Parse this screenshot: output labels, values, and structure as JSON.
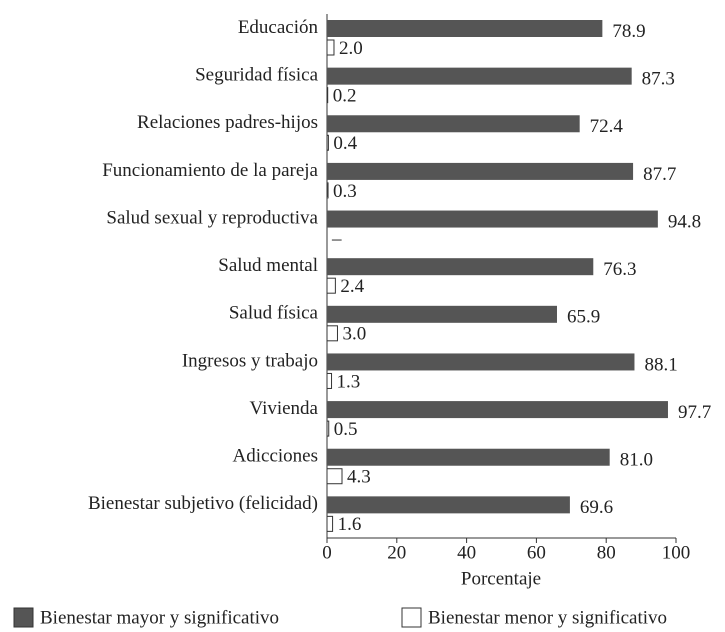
{
  "chart_data": {
    "type": "hbar",
    "x_label": "Porcentaje",
    "categories": [
      "Educación",
      "Seguridad física",
      "Relaciones padres-hijos",
      "Funcionamiento de la pareja",
      "Salud sexual y reproductiva",
      "Salud mental",
      "Salud física",
      "Ingresos y trabajo",
      "Vivienda",
      "Adicciones",
      "Bienestar subjetivo (felicidad)"
    ],
    "series": [
      {
        "name": "Bienestar mayor y significativo",
        "color": "#555555",
        "values": [
          78.9,
          87.3,
          72.4,
          87.7,
          94.8,
          76.3,
          65.9,
          88.1,
          97.7,
          81.0,
          69.6
        ],
        "value_labels": [
          "78.9",
          "87.3",
          "72.4",
          "87.7",
          "94.8",
          "76.3",
          "65.9",
          "88.1",
          "97.7",
          "81.0",
          "69.6"
        ]
      },
      {
        "name": "Bienestar menor y significativo",
        "color": "#ffffff",
        "values": [
          2.0,
          0.2,
          0.4,
          0.3,
          null,
          2.4,
          3.0,
          1.3,
          0.5,
          4.3,
          1.6
        ],
        "value_labels": [
          "2.0",
          "0.2",
          "0.4",
          "0.3",
          "–",
          "2.4",
          "3.0",
          "1.3",
          "0.5",
          "4.3",
          "1.6"
        ]
      }
    ],
    "xlim": [
      0,
      100
    ],
    "xticks": [
      0,
      20,
      40,
      60,
      80,
      100
    ],
    "grid": false,
    "legend": "bottom"
  }
}
